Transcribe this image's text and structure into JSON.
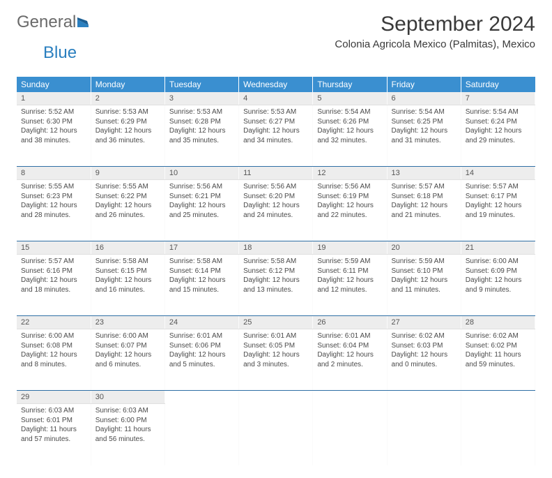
{
  "brand": {
    "word1": "General",
    "word2": "Blue"
  },
  "title": "September 2024",
  "location": "Colonia Agricola Mexico (Palmitas), Mexico",
  "colors": {
    "header_bg": "#3a8fd0",
    "header_text": "#ffffff",
    "daynum_bg": "#ededed",
    "week_divider": "#2f6fa5",
    "logo_gray": "#6a6a6a",
    "logo_blue": "#2a7fbf"
  },
  "weekdays": [
    "Sunday",
    "Monday",
    "Tuesday",
    "Wednesday",
    "Thursday",
    "Friday",
    "Saturday"
  ],
  "weeks": [
    [
      {
        "n": "1",
        "sr": "5:52 AM",
        "ss": "6:30 PM",
        "dh": "12",
        "dm": "38"
      },
      {
        "n": "2",
        "sr": "5:53 AM",
        "ss": "6:29 PM",
        "dh": "12",
        "dm": "36"
      },
      {
        "n": "3",
        "sr": "5:53 AM",
        "ss": "6:28 PM",
        "dh": "12",
        "dm": "35"
      },
      {
        "n": "4",
        "sr": "5:53 AM",
        "ss": "6:27 PM",
        "dh": "12",
        "dm": "34"
      },
      {
        "n": "5",
        "sr": "5:54 AM",
        "ss": "6:26 PM",
        "dh": "12",
        "dm": "32"
      },
      {
        "n": "6",
        "sr": "5:54 AM",
        "ss": "6:25 PM",
        "dh": "12",
        "dm": "31"
      },
      {
        "n": "7",
        "sr": "5:54 AM",
        "ss": "6:24 PM",
        "dh": "12",
        "dm": "29"
      }
    ],
    [
      {
        "n": "8",
        "sr": "5:55 AM",
        "ss": "6:23 PM",
        "dh": "12",
        "dm": "28"
      },
      {
        "n": "9",
        "sr": "5:55 AM",
        "ss": "6:22 PM",
        "dh": "12",
        "dm": "26"
      },
      {
        "n": "10",
        "sr": "5:56 AM",
        "ss": "6:21 PM",
        "dh": "12",
        "dm": "25"
      },
      {
        "n": "11",
        "sr": "5:56 AM",
        "ss": "6:20 PM",
        "dh": "12",
        "dm": "24"
      },
      {
        "n": "12",
        "sr": "5:56 AM",
        "ss": "6:19 PM",
        "dh": "12",
        "dm": "22"
      },
      {
        "n": "13",
        "sr": "5:57 AM",
        "ss": "6:18 PM",
        "dh": "12",
        "dm": "21"
      },
      {
        "n": "14",
        "sr": "5:57 AM",
        "ss": "6:17 PM",
        "dh": "12",
        "dm": "19"
      }
    ],
    [
      {
        "n": "15",
        "sr": "5:57 AM",
        "ss": "6:16 PM",
        "dh": "12",
        "dm": "18"
      },
      {
        "n": "16",
        "sr": "5:58 AM",
        "ss": "6:15 PM",
        "dh": "12",
        "dm": "16"
      },
      {
        "n": "17",
        "sr": "5:58 AM",
        "ss": "6:14 PM",
        "dh": "12",
        "dm": "15"
      },
      {
        "n": "18",
        "sr": "5:58 AM",
        "ss": "6:12 PM",
        "dh": "12",
        "dm": "13"
      },
      {
        "n": "19",
        "sr": "5:59 AM",
        "ss": "6:11 PM",
        "dh": "12",
        "dm": "12"
      },
      {
        "n": "20",
        "sr": "5:59 AM",
        "ss": "6:10 PM",
        "dh": "12",
        "dm": "11"
      },
      {
        "n": "21",
        "sr": "6:00 AM",
        "ss": "6:09 PM",
        "dh": "12",
        "dm": "9"
      }
    ],
    [
      {
        "n": "22",
        "sr": "6:00 AM",
        "ss": "6:08 PM",
        "dh": "12",
        "dm": "8"
      },
      {
        "n": "23",
        "sr": "6:00 AM",
        "ss": "6:07 PM",
        "dh": "12",
        "dm": "6"
      },
      {
        "n": "24",
        "sr": "6:01 AM",
        "ss": "6:06 PM",
        "dh": "12",
        "dm": "5"
      },
      {
        "n": "25",
        "sr": "6:01 AM",
        "ss": "6:05 PM",
        "dh": "12",
        "dm": "3"
      },
      {
        "n": "26",
        "sr": "6:01 AM",
        "ss": "6:04 PM",
        "dh": "12",
        "dm": "2"
      },
      {
        "n": "27",
        "sr": "6:02 AM",
        "ss": "6:03 PM",
        "dh": "12",
        "dm": "0"
      },
      {
        "n": "28",
        "sr": "6:02 AM",
        "ss": "6:02 PM",
        "dh": "11",
        "dm": "59"
      }
    ],
    [
      {
        "n": "29",
        "sr": "6:03 AM",
        "ss": "6:01 PM",
        "dh": "11",
        "dm": "57"
      },
      {
        "n": "30",
        "sr": "6:03 AM",
        "ss": "6:00 PM",
        "dh": "11",
        "dm": "56"
      },
      null,
      null,
      null,
      null,
      null
    ]
  ],
  "labels": {
    "sunrise": "Sunrise:",
    "sunset": "Sunset:",
    "daylight": "Daylight:",
    "hours": "hours",
    "and": "and",
    "minutes": "minutes."
  }
}
